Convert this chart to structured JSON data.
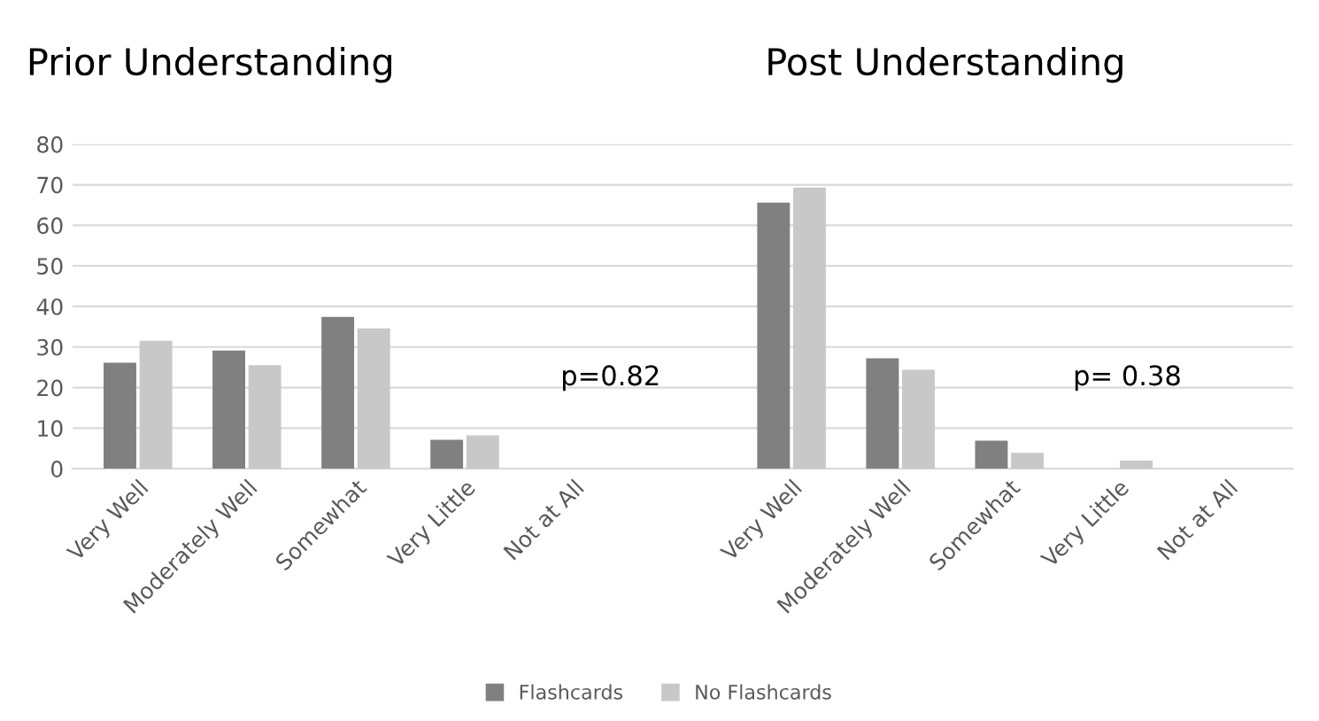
{
  "chart_data": {
    "type": "bar",
    "categories": [
      "Very Well",
      "Moderately Well",
      "Somewhat",
      "Very Little",
      "Not at All",
      null,
      "Very Well",
      "Moderately Well",
      "Somewhat",
      "Very Little",
      "Not at All"
    ],
    "series": [
      {
        "name": "Flashcards",
        "color": "#808080",
        "values": [
          26.1,
          29.1,
          37.4,
          7.1,
          0,
          null,
          65.6,
          27.2,
          6.9,
          0,
          0
        ]
      },
      {
        "name": "No Flashcards",
        "color": "#c8c8c8",
        "values": [
          31.5,
          25.5,
          34.6,
          8.2,
          0,
          null,
          69.3,
          24.4,
          3.9,
          2.0,
          0
        ]
      }
    ],
    "ylim": [
      0,
      80
    ],
    "yticks": [
      0,
      10,
      20,
      30,
      40,
      50,
      60,
      70,
      80
    ],
    "grid": "y",
    "legend": "bottom",
    "annotations": [
      "Prior Understanding",
      "Post Understanding",
      "p=0.82",
      "p= 0.38"
    ]
  }
}
